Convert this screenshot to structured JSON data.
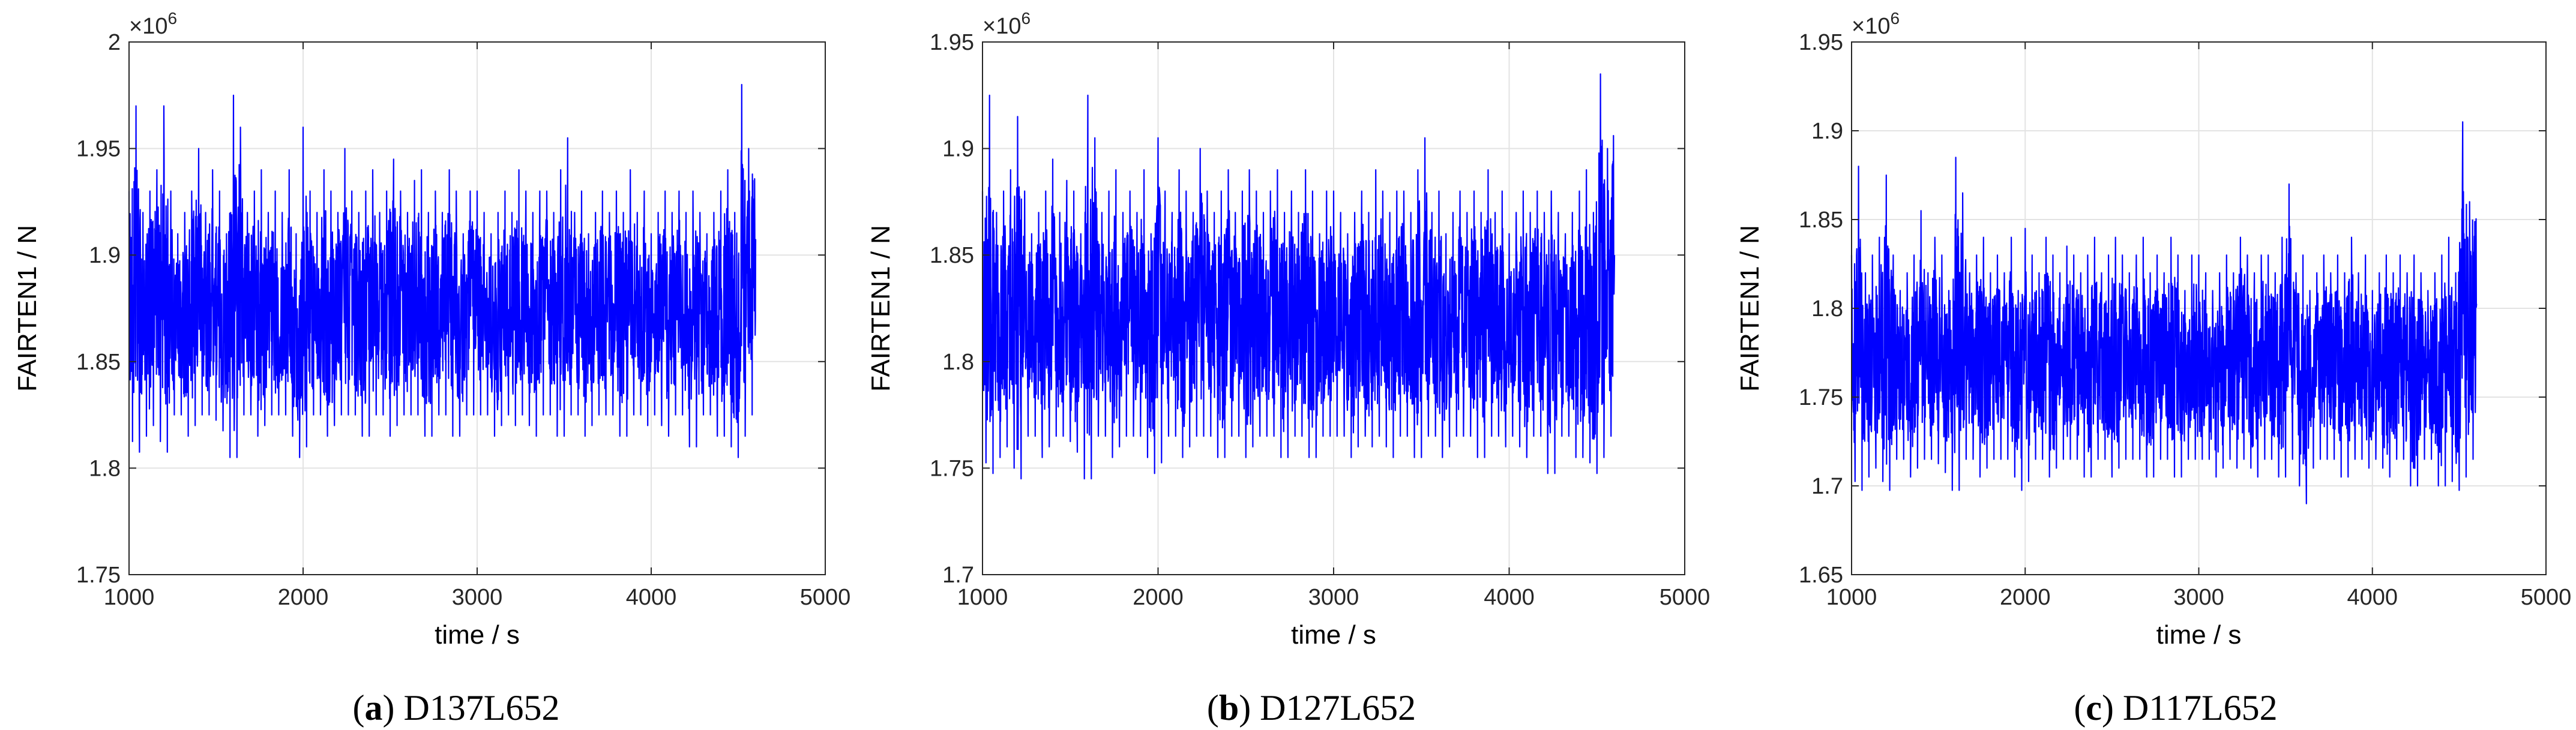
{
  "chart_data": [
    {
      "type": "line",
      "caption_letter": "a",
      "caption_text": "D137L652",
      "xlabel": "time / s",
      "ylabel": "FAIRTEN1 / N",
      "exponent_base": "×10",
      "exponent_power": "6",
      "xlim": [
        1000,
        5000
      ],
      "ylim": [
        1.75,
        2.0
      ],
      "xticks": [
        1000,
        2000,
        3000,
        4000,
        5000
      ],
      "yticks": [
        1.75,
        1.8,
        1.85,
        1.9,
        1.95,
        2.0
      ],
      "ytick_labels": [
        "1.75",
        "1.8",
        "1.85",
        "1.9",
        "1.95",
        "2"
      ],
      "grid": true,
      "line_color": "#0000ff",
      "series": [
        {
          "x": [
            1000,
            1040,
            1080,
            1120,
            1160,
            1200,
            1240,
            1280,
            1320,
            1360,
            1400,
            1440,
            1480,
            1520,
            1560,
            1600,
            1640,
            1680,
            1720,
            1760,
            1800,
            1840,
            1880,
            1920,
            1960,
            2000,
            2040,
            2080,
            2120,
            2160,
            2200,
            2240,
            2280,
            2320,
            2360,
            2400,
            2440,
            2480,
            2520,
            2560,
            2600,
            2640,
            2680,
            2720,
            2760,
            2800,
            2840,
            2880,
            2920,
            2960,
            3000,
            3040,
            3080,
            3120,
            3160,
            3200,
            3240,
            3280,
            3320,
            3360,
            3400,
            3440,
            3480,
            3520,
            3560,
            3600,
            3640,
            3680,
            3720,
            3760,
            3800,
            3840,
            3880,
            3920,
            3960,
            4000,
            4040,
            4080,
            4120,
            4160,
            4200,
            4240,
            4280,
            4320,
            4360,
            4400,
            4440,
            4480,
            4520,
            4560,
            4600
          ],
          "y_max": [
            1.93,
            1.97,
            1.92,
            1.93,
            1.94,
            1.97,
            1.93,
            1.91,
            1.92,
            1.93,
            1.95,
            1.92,
            1.94,
            1.93,
            1.91,
            1.975,
            1.96,
            1.92,
            1.93,
            1.94,
            1.92,
            1.93,
            1.92,
            1.94,
            1.91,
            1.96,
            1.93,
            1.92,
            1.94,
            1.93,
            1.92,
            1.95,
            1.93,
            1.92,
            1.93,
            1.94,
            1.92,
            1.93,
            1.945,
            1.93,
            1.92,
            1.935,
            1.94,
            1.92,
            1.93,
            1.92,
            1.94,
            1.93,
            1.91,
            1.93,
            1.93,
            1.92,
            1.91,
            1.92,
            1.93,
            1.92,
            1.94,
            1.93,
            1.92,
            1.93,
            1.93,
            1.92,
            1.94,
            1.955,
            1.92,
            1.93,
            1.91,
            1.92,
            1.93,
            1.92,
            1.93,
            1.92,
            1.94,
            1.92,
            1.93,
            1.91,
            1.92,
            1.93,
            1.92,
            1.93,
            1.92,
            1.93,
            1.92,
            1.91,
            1.92,
            1.93,
            1.94,
            1.92,
            1.98,
            1.95,
            1.985
          ],
          "y_min": [
            1.83,
            1.795,
            1.82,
            1.81,
            1.83,
            1.795,
            1.82,
            1.83,
            1.82,
            1.81,
            1.83,
            1.82,
            1.83,
            1.815,
            1.82,
            1.79,
            1.82,
            1.83,
            1.82,
            1.81,
            1.83,
            1.82,
            1.83,
            1.82,
            1.81,
            1.8,
            1.82,
            1.83,
            1.82,
            1.81,
            1.83,
            1.82,
            1.83,
            1.82,
            1.81,
            1.82,
            1.83,
            1.82,
            1.81,
            1.83,
            1.82,
            1.83,
            1.82,
            1.81,
            1.82,
            1.83,
            1.82,
            1.81,
            1.82,
            1.83,
            1.82,
            1.83,
            1.82,
            1.81,
            1.83,
            1.82,
            1.82,
            1.83,
            1.81,
            1.82,
            1.83,
            1.82,
            1.81,
            1.82,
            1.83,
            1.82,
            1.81,
            1.83,
            1.82,
            1.83,
            1.82,
            1.81,
            1.82,
            1.83,
            1.82,
            1.82,
            1.83,
            1.81,
            1.82,
            1.83,
            1.82,
            1.8,
            1.82,
            1.83,
            1.82,
            1.81,
            1.82,
            1.8,
            1.81,
            1.82,
            1.83
          ]
        }
      ]
    },
    {
      "type": "line",
      "caption_letter": "b",
      "caption_text": "D127L652",
      "xlabel": "time / s",
      "ylabel": "FAIRTEN1 / N",
      "exponent_base": "×10",
      "exponent_power": "6",
      "xlim": [
        1000,
        5000
      ],
      "ylim": [
        1.7,
        1.95
      ],
      "xticks": [
        1000,
        2000,
        3000,
        4000,
        5000
      ],
      "yticks": [
        1.7,
        1.75,
        1.8,
        1.85,
        1.9,
        1.95
      ],
      "ytick_labels": [
        "1.7",
        "1.75",
        "1.8",
        "1.85",
        "1.9",
        "1.95"
      ],
      "grid": true,
      "line_color": "#0000ff",
      "series": [
        {
          "x": [
            1000,
            1040,
            1080,
            1120,
            1160,
            1200,
            1240,
            1280,
            1320,
            1360,
            1400,
            1440,
            1480,
            1520,
            1560,
            1600,
            1640,
            1680,
            1720,
            1760,
            1800,
            1840,
            1880,
            1920,
            1960,
            2000,
            2040,
            2080,
            2120,
            2160,
            2200,
            2240,
            2280,
            2320,
            2360,
            2400,
            2440,
            2480,
            2520,
            2560,
            2600,
            2640,
            2680,
            2720,
            2760,
            2800,
            2840,
            2880,
            2920,
            2960,
            3000,
            3040,
            3080,
            3120,
            3160,
            3200,
            3240,
            3280,
            3320,
            3360,
            3400,
            3440,
            3480,
            3520,
            3560,
            3600,
            3640,
            3680,
            3720,
            3760,
            3800,
            3840,
            3880,
            3920,
            3960,
            4000,
            4040,
            4080,
            4120,
            4160,
            4200,
            4240,
            4280,
            4320,
            4360,
            4400,
            4440,
            4480,
            4520,
            4560,
            4600
          ],
          "y_max": [
            1.88,
            1.925,
            1.87,
            1.88,
            1.89,
            1.915,
            1.88,
            1.86,
            1.87,
            1.88,
            1.895,
            1.87,
            1.885,
            1.88,
            1.86,
            1.925,
            1.905,
            1.87,
            1.88,
            1.89,
            1.87,
            1.88,
            1.87,
            1.89,
            1.86,
            1.905,
            1.88,
            1.87,
            1.89,
            1.88,
            1.87,
            1.9,
            1.88,
            1.87,
            1.88,
            1.89,
            1.87,
            1.88,
            1.89,
            1.88,
            1.87,
            1.88,
            1.89,
            1.87,
            1.88,
            1.87,
            1.89,
            1.88,
            1.86,
            1.88,
            1.88,
            1.87,
            1.86,
            1.87,
            1.88,
            1.87,
            1.89,
            1.88,
            1.87,
            1.88,
            1.88,
            1.87,
            1.89,
            1.905,
            1.87,
            1.88,
            1.86,
            1.87,
            1.88,
            1.87,
            1.88,
            1.87,
            1.89,
            1.87,
            1.88,
            1.86,
            1.87,
            1.88,
            1.87,
            1.88,
            1.87,
            1.88,
            1.87,
            1.86,
            1.87,
            1.88,
            1.89,
            1.87,
            1.935,
            1.9,
            1.93
          ],
          "y_min": [
            1.77,
            1.735,
            1.76,
            1.75,
            1.77,
            1.73,
            1.76,
            1.77,
            1.76,
            1.75,
            1.77,
            1.76,
            1.77,
            1.755,
            1.76,
            1.73,
            1.76,
            1.77,
            1.76,
            1.75,
            1.77,
            1.76,
            1.77,
            1.76,
            1.75,
            1.745,
            1.76,
            1.77,
            1.76,
            1.75,
            1.77,
            1.76,
            1.77,
            1.76,
            1.75,
            1.76,
            1.77,
            1.76,
            1.75,
            1.77,
            1.76,
            1.77,
            1.76,
            1.75,
            1.76,
            1.77,
            1.76,
            1.75,
            1.76,
            1.77,
            1.76,
            1.77,
            1.76,
            1.75,
            1.77,
            1.76,
            1.76,
            1.77,
            1.75,
            1.76,
            1.77,
            1.76,
            1.75,
            1.76,
            1.77,
            1.76,
            1.75,
            1.77,
            1.76,
            1.77,
            1.76,
            1.75,
            1.76,
            1.77,
            1.76,
            1.76,
            1.77,
            1.75,
            1.76,
            1.77,
            1.76,
            1.735,
            1.76,
            1.77,
            1.76,
            1.75,
            1.76,
            1.745,
            1.75,
            1.76,
            1.77
          ]
        }
      ]
    },
    {
      "type": "line",
      "caption_letter": "c",
      "caption_text": "D117L652",
      "xlabel": "time / s",
      "ylabel": "FAIRTEN1 / N",
      "exponent_base": "×10",
      "exponent_power": "6",
      "xlim": [
        1000,
        5000
      ],
      "ylim": [
        1.65,
        1.95
      ],
      "xticks": [
        1000,
        2000,
        3000,
        4000,
        5000
      ],
      "yticks": [
        1.65,
        1.7,
        1.75,
        1.8,
        1.85,
        1.9,
        1.95
      ],
      "ytick_labels": [
        "1.65",
        "1.7",
        "1.75",
        "1.8",
        "1.85",
        "1.9",
        "1.95"
      ],
      "grid": true,
      "line_color": "#0000ff",
      "series": [
        {
          "x": [
            1000,
            1040,
            1080,
            1120,
            1160,
            1200,
            1240,
            1280,
            1320,
            1360,
            1400,
            1440,
            1480,
            1520,
            1560,
            1600,
            1640,
            1680,
            1720,
            1760,
            1800,
            1840,
            1880,
            1920,
            1960,
            2000,
            2040,
            2080,
            2120,
            2160,
            2200,
            2240,
            2280,
            2320,
            2360,
            2400,
            2440,
            2480,
            2520,
            2560,
            2600,
            2640,
            2680,
            2720,
            2760,
            2800,
            2840,
            2880,
            2920,
            2960,
            3000,
            3040,
            3080,
            3120,
            3160,
            3200,
            3240,
            3280,
            3320,
            3360,
            3400,
            3440,
            3480,
            3520,
            3560,
            3600,
            3640,
            3680,
            3720,
            3760,
            3800,
            3840,
            3880,
            3920,
            3960,
            4000,
            4040,
            4080,
            4120,
            4160,
            4200,
            4240,
            4280,
            4320,
            4360,
            4400,
            4440,
            4480,
            4520,
            4560,
            4600
          ],
          "y_max": [
            1.83,
            1.88,
            1.82,
            1.83,
            1.84,
            1.875,
            1.83,
            1.81,
            1.82,
            1.83,
            1.855,
            1.82,
            1.84,
            1.83,
            1.81,
            1.885,
            1.865,
            1.82,
            1.83,
            1.84,
            1.82,
            1.83,
            1.82,
            1.84,
            1.81,
            1.845,
            1.83,
            1.82,
            1.84,
            1.83,
            1.82,
            1.835,
            1.83,
            1.82,
            1.83,
            1.84,
            1.82,
            1.83,
            1.84,
            1.83,
            1.82,
            1.83,
            1.84,
            1.82,
            1.83,
            1.82,
            1.84,
            1.83,
            1.81,
            1.83,
            1.83,
            1.82,
            1.81,
            1.82,
            1.83,
            1.82,
            1.84,
            1.83,
            1.82,
            1.83,
            1.83,
            1.82,
            1.84,
            1.87,
            1.82,
            1.83,
            1.81,
            1.82,
            1.83,
            1.82,
            1.83,
            1.82,
            1.84,
            1.82,
            1.83,
            1.81,
            1.82,
            1.83,
            1.82,
            1.83,
            1.82,
            1.83,
            1.82,
            1.81,
            1.82,
            1.83,
            1.84,
            1.82,
            1.905,
            1.86,
            1.885
          ],
          "y_min": [
            1.72,
            1.685,
            1.71,
            1.7,
            1.72,
            1.685,
            1.71,
            1.72,
            1.71,
            1.7,
            1.72,
            1.71,
            1.72,
            1.705,
            1.71,
            1.685,
            1.71,
            1.72,
            1.71,
            1.7,
            1.72,
            1.71,
            1.72,
            1.71,
            1.7,
            1.695,
            1.71,
            1.72,
            1.71,
            1.7,
            1.72,
            1.71,
            1.72,
            1.71,
            1.7,
            1.71,
            1.72,
            1.71,
            1.7,
            1.72,
            1.71,
            1.72,
            1.71,
            1.7,
            1.71,
            1.72,
            1.71,
            1.7,
            1.71,
            1.72,
            1.71,
            1.72,
            1.71,
            1.7,
            1.72,
            1.71,
            1.71,
            1.72,
            1.7,
            1.71,
            1.72,
            1.71,
            1.7,
            1.71,
            1.72,
            1.68,
            1.7,
            1.72,
            1.71,
            1.72,
            1.71,
            1.7,
            1.71,
            1.72,
            1.71,
            1.71,
            1.72,
            1.7,
            1.71,
            1.72,
            1.71,
            1.69,
            1.71,
            1.72,
            1.71,
            1.69,
            1.71,
            1.695,
            1.7,
            1.71,
            1.72
          ]
        }
      ]
    }
  ]
}
